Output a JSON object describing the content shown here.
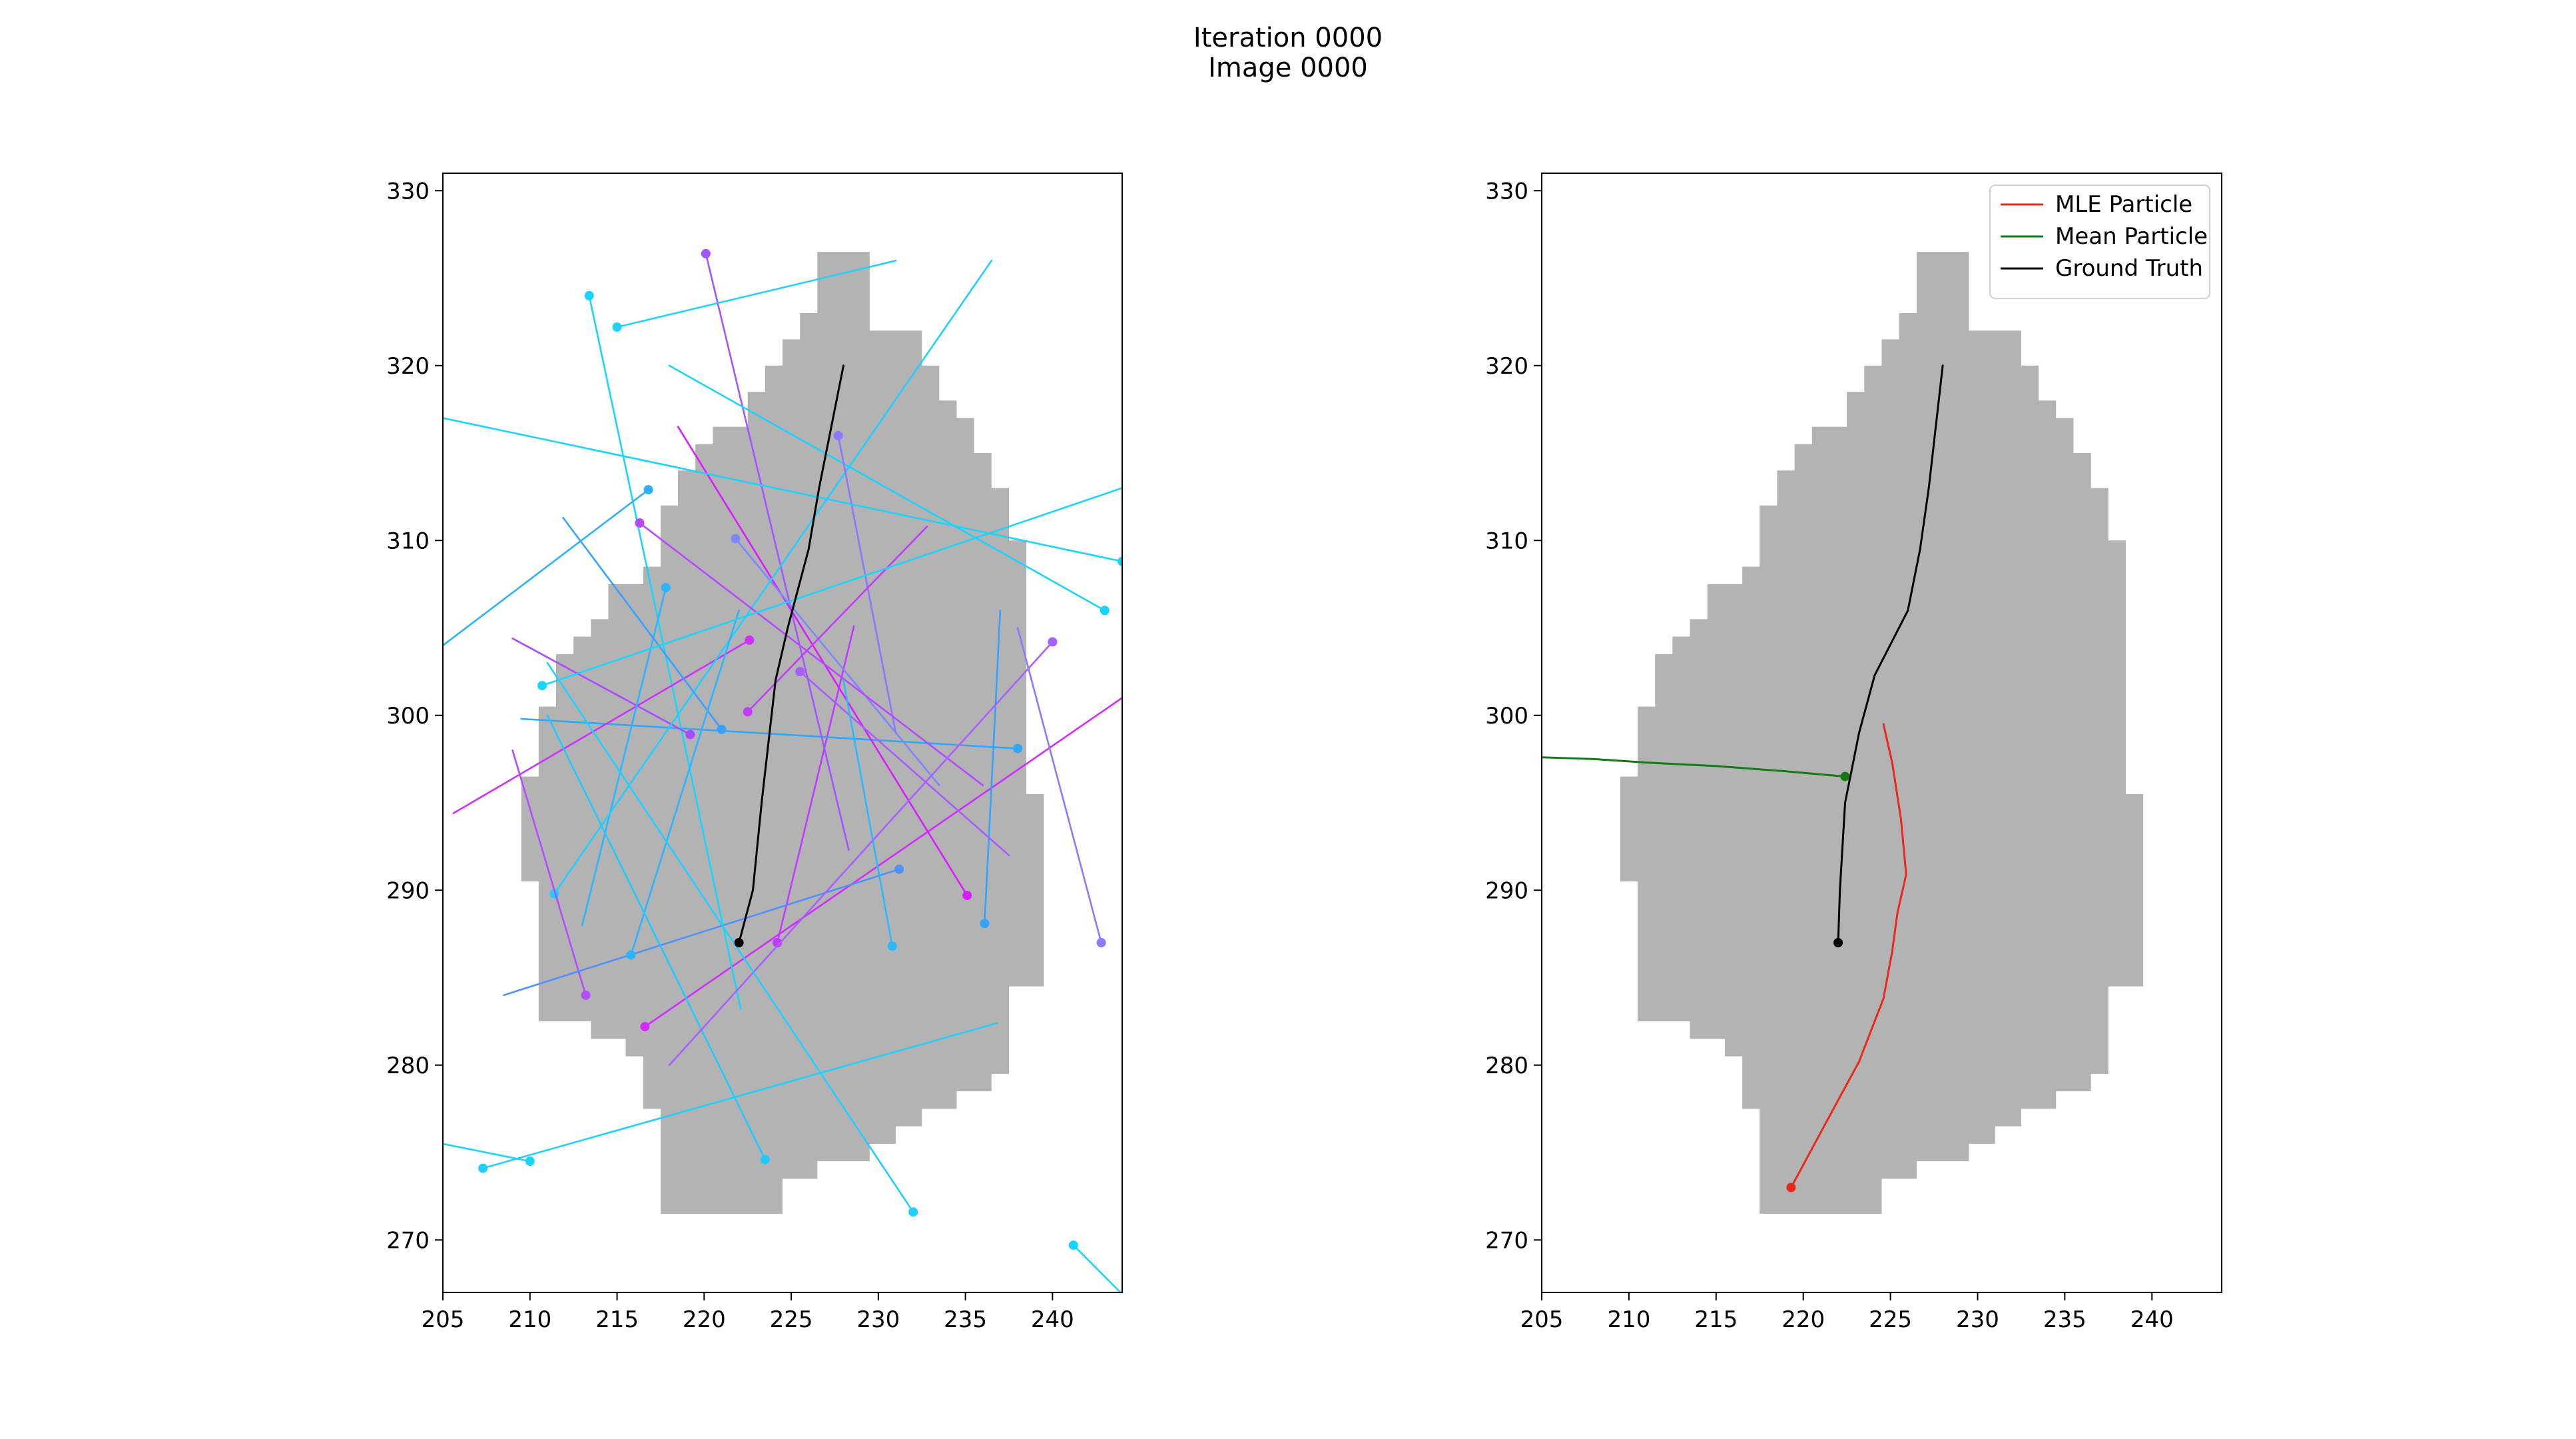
{
  "figure": {
    "title_line1": "Iteration 0000",
    "title_line2": "Image 0000"
  },
  "chart_data": [
    {
      "type": "line",
      "panel": "left",
      "xlim": [
        205,
        244
      ],
      "ylim": [
        267,
        331
      ],
      "xticks": [
        205,
        210,
        215,
        220,
        225,
        230,
        235,
        240
      ],
      "yticks": [
        270,
        280,
        290,
        300,
        310,
        320,
        330
      ],
      "grid": false,
      "legend": "none",
      "region_color": "#b3b3b3",
      "ground_truth": {
        "color": "#000000",
        "x": [
          222.0,
          222.8,
          223.3,
          224.1,
          224.8,
          226.0,
          226.6,
          227.2,
          228.0
        ],
        "y": [
          287.0,
          290.0,
          295.0,
          302.0,
          305.0,
          309.5,
          313.0,
          316.0,
          320.0
        ]
      },
      "particles": [
        {
          "color": "#c03bff",
          "x": [
            224.2,
            228.6
          ],
          "y": [
            287.0,
            305.1
          ]
        },
        {
          "color": "#2ea7ff",
          "x": [
            238.0,
            209.5
          ],
          "y": [
            298.1,
            299.8
          ]
        },
        {
          "color": "#d12bff",
          "x": [
            216.6,
            244.0
          ],
          "y": [
            282.2,
            301.0
          ]
        },
        {
          "color": "#a356ff",
          "x": [
            220.1,
            228.3
          ],
          "y": [
            326.4,
            292.3
          ]
        },
        {
          "color": "#1ad3ff",
          "x": [
            213.4,
            222.1
          ],
          "y": [
            324.0,
            283.2
          ]
        },
        {
          "color": "#1ad3ff",
          "x": [
            241.2,
            244.0
          ],
          "y": [
            269.7,
            266.9
          ]
        },
        {
          "color": "#db1bff",
          "x": [
            235.1,
            218.5
          ],
          "y": [
            289.7,
            316.5
          ]
        },
        {
          "color": "#cc32ff",
          "x": [
            222.6,
            205.6
          ],
          "y": [
            304.3,
            294.4
          ]
        },
        {
          "color": "#ab4aff",
          "x": [
            219.2,
            209.0
          ],
          "y": [
            298.9,
            304.4
          ]
        },
        {
          "color": "#33a3ff",
          "x": [
            236.1,
            237.0
          ],
          "y": [
            288.1,
            306.0
          ]
        },
        {
          "color": "#7e86ff",
          "x": [
            221.8,
            233.5
          ],
          "y": [
            310.1,
            296.0
          ]
        },
        {
          "color": "#1fd2ff",
          "x": [
            215.0,
            231.0
          ],
          "y": [
            322.2,
            326.0
          ]
        },
        {
          "color": "#2bb4ff",
          "x": [
            217.8,
            213.0
          ],
          "y": [
            307.3,
            288.0
          ]
        },
        {
          "color": "#1ed0ff",
          "x": [
            211.4,
            236.5
          ],
          "y": [
            289.8,
            326.0
          ]
        },
        {
          "color": "#1ad3ff",
          "x": [
            243.0,
            218.0
          ],
          "y": [
            306.0,
            320.0
          ]
        },
        {
          "color": "#1fd0ff",
          "x": [
            207.3,
            236.8
          ],
          "y": [
            274.1,
            282.4
          ]
        },
        {
          "color": "#8c77ff",
          "x": [
            227.7,
            231.0
          ],
          "y": [
            316.0,
            299.0
          ]
        },
        {
          "color": "#a85cff",
          "x": [
            225.5,
            237.5
          ],
          "y": [
            302.5,
            292.0
          ]
        },
        {
          "color": "#b24dff",
          "x": [
            213.2,
            209.0
          ],
          "y": [
            284.0,
            298.0
          ]
        },
        {
          "color": "#36a1ff",
          "x": [
            221.0,
            211.9
          ],
          "y": [
            299.2,
            311.3
          ]
        },
        {
          "color": "#4e91ff",
          "x": [
            231.2,
            208.5
          ],
          "y": [
            291.2,
            284.0
          ]
        },
        {
          "color": "#2bb4ff",
          "x": [
            215.8,
            222.0
          ],
          "y": [
            286.3,
            306.0
          ]
        },
        {
          "color": "#b748ff",
          "x": [
            216.3,
            236.0
          ],
          "y": [
            311.0,
            296.0
          ]
        },
        {
          "color": "#c33bff",
          "x": [
            222.5,
            232.8
          ],
          "y": [
            300.2,
            310.8
          ]
        },
        {
          "color": "#1ecaff",
          "x": [
            223.5,
            211.0
          ],
          "y": [
            274.6,
            300.0
          ]
        },
        {
          "color": "#2ab8ff",
          "x": [
            230.8,
            228.0
          ],
          "y": [
            286.8,
            302.0
          ]
        },
        {
          "color": "#a85fff",
          "x": [
            240.0,
            218.0
          ],
          "y": [
            304.2,
            280.0
          ]
        },
        {
          "color": "#8a7bff",
          "x": [
            242.8,
            238.0
          ],
          "y": [
            287.0,
            305.0
          ]
        },
        {
          "color": "#1ad5ff",
          "x": [
            210.7,
            244.0
          ],
          "y": [
            301.7,
            313.0
          ]
        },
        {
          "color": "#2bb0ff",
          "x": [
            216.8,
            205.0
          ],
          "y": [
            312.9,
            304.0
          ]
        },
        {
          "color": "#1ed0ff",
          "x": [
            232.0,
            211.0
          ],
          "y": [
            271.6,
            303.0
          ]
        },
        {
          "color": "#1ad3ff",
          "x": [
            244.0,
            205.0
          ],
          "y": [
            308.8,
            317.0
          ]
        },
        {
          "color": "#1ad3ff",
          "x": [
            210.0,
            205.0
          ],
          "y": [
            274.5,
            275.5
          ]
        }
      ]
    },
    {
      "type": "line",
      "panel": "right",
      "xlim": [
        205,
        244
      ],
      "ylim": [
        267,
        331
      ],
      "xticks": [
        205,
        210,
        215,
        220,
        225,
        230,
        235,
        240
      ],
      "yticks": [
        270,
        280,
        290,
        300,
        310,
        320,
        330
      ],
      "grid": false,
      "legend": "top-right",
      "region_color": "#b3b3b3",
      "series": [
        {
          "name": "MLE Particle",
          "color": "#e8291c",
          "x": [
            219.3,
            221.3,
            223.2,
            224.6,
            225.1,
            225.4,
            225.9,
            225.6,
            225.1,
            224.6
          ],
          "y": [
            273.0,
            276.7,
            280.2,
            283.8,
            286.5,
            288.7,
            290.9,
            294.1,
            297.3,
            299.5
          ]
        },
        {
          "name": "Mean Particle",
          "color": "#157a15",
          "x": [
            222.4,
            219.0,
            215.0,
            211.0,
            208.0,
            205.0
          ],
          "y": [
            296.5,
            296.8,
            297.1,
            297.3,
            297.5,
            297.6
          ]
        },
        {
          "name": "Ground Truth",
          "color": "#000000",
          "x": [
            222.0,
            222.1,
            222.4,
            223.2,
            224.1,
            226.0,
            226.7,
            227.2,
            228.0
          ],
          "y": [
            287.0,
            290.0,
            295.0,
            299.0,
            302.3,
            306.0,
            309.5,
            313.0,
            320.0
          ]
        }
      ]
    }
  ]
}
